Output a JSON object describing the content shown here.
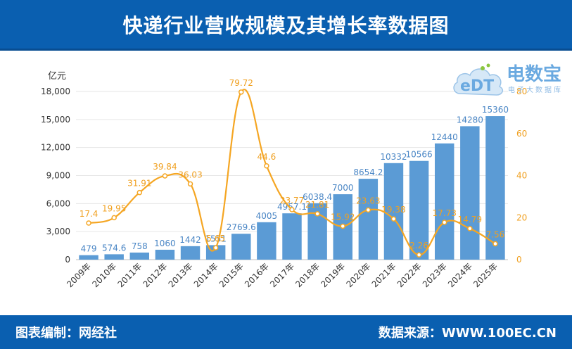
{
  "header": {
    "title": "快递行业营收规模及其增长率数据图"
  },
  "footer": {
    "left": "图表编制：网经社",
    "right": "数据来源：WWW.100EC.CN"
  },
  "logo": {
    "mark_text": "eDT",
    "brand": "电数宝",
    "tagline": "电子大数据库"
  },
  "colors": {
    "bar": "#5b9bd5",
    "line": "#f5a623",
    "header_bg": "#0a5fb0",
    "bar_label": "#4a86c5",
    "line_label": "#f0a020"
  },
  "chart_data": {
    "type": "bar",
    "categories": [
      "2009年",
      "2010年",
      "2011年",
      "2012年",
      "2013年",
      "2014年",
      "2015年",
      "2016年",
      "2017年",
      "2018年",
      "2019年",
      "2020年",
      "2021年",
      "2022年",
      "2023年",
      "2024年",
      "2025年"
    ],
    "ylabel": "亿元",
    "ylim": [
      0,
      18000
    ],
    "yticks": [
      "0",
      "3,000",
      "6,000",
      "9,000",
      "12,000",
      "15,000",
      "18,000"
    ],
    "y2lim": [
      0,
      80
    ],
    "y2ticks": [
      "0",
      "20",
      "40",
      "60",
      "80"
    ],
    "series": [
      {
        "type": "bar",
        "values": [
          479,
          574.6,
          758,
          1060,
          1442,
          1551,
          2769.6,
          4005,
          4957.1,
          6038.4,
          7000,
          8654.2,
          10332,
          10566,
          12440,
          14280,
          15360
        ],
        "labels": [
          "479",
          "574.6",
          "758",
          "1060",
          "1442",
          "1551",
          "2769.6",
          "4005",
          "4957.1",
          "6038.4",
          "7000",
          "8654.2",
          "10332",
          "10566",
          "12440",
          "14280",
          "15360"
        ]
      },
      {
        "type": "line",
        "axis": "right",
        "values": [
          17.4,
          19.95,
          31.91,
          39.84,
          36.03,
          5.65,
          79.72,
          44.6,
          23.77,
          21.81,
          15.92,
          23.63,
          19.38,
          2.26,
          17.73,
          14.79,
          7.56
        ],
        "labels": [
          "17.4",
          "19.95",
          "31.91",
          "39.84",
          "36.03",
          "5.65",
          "79.72",
          "44.6",
          "23.77",
          "21.81",
          "15.92",
          "23.63",
          "19.38",
          "2.26",
          "17.73",
          "14.79",
          "7.56"
        ]
      }
    ],
    "grid": true
  }
}
